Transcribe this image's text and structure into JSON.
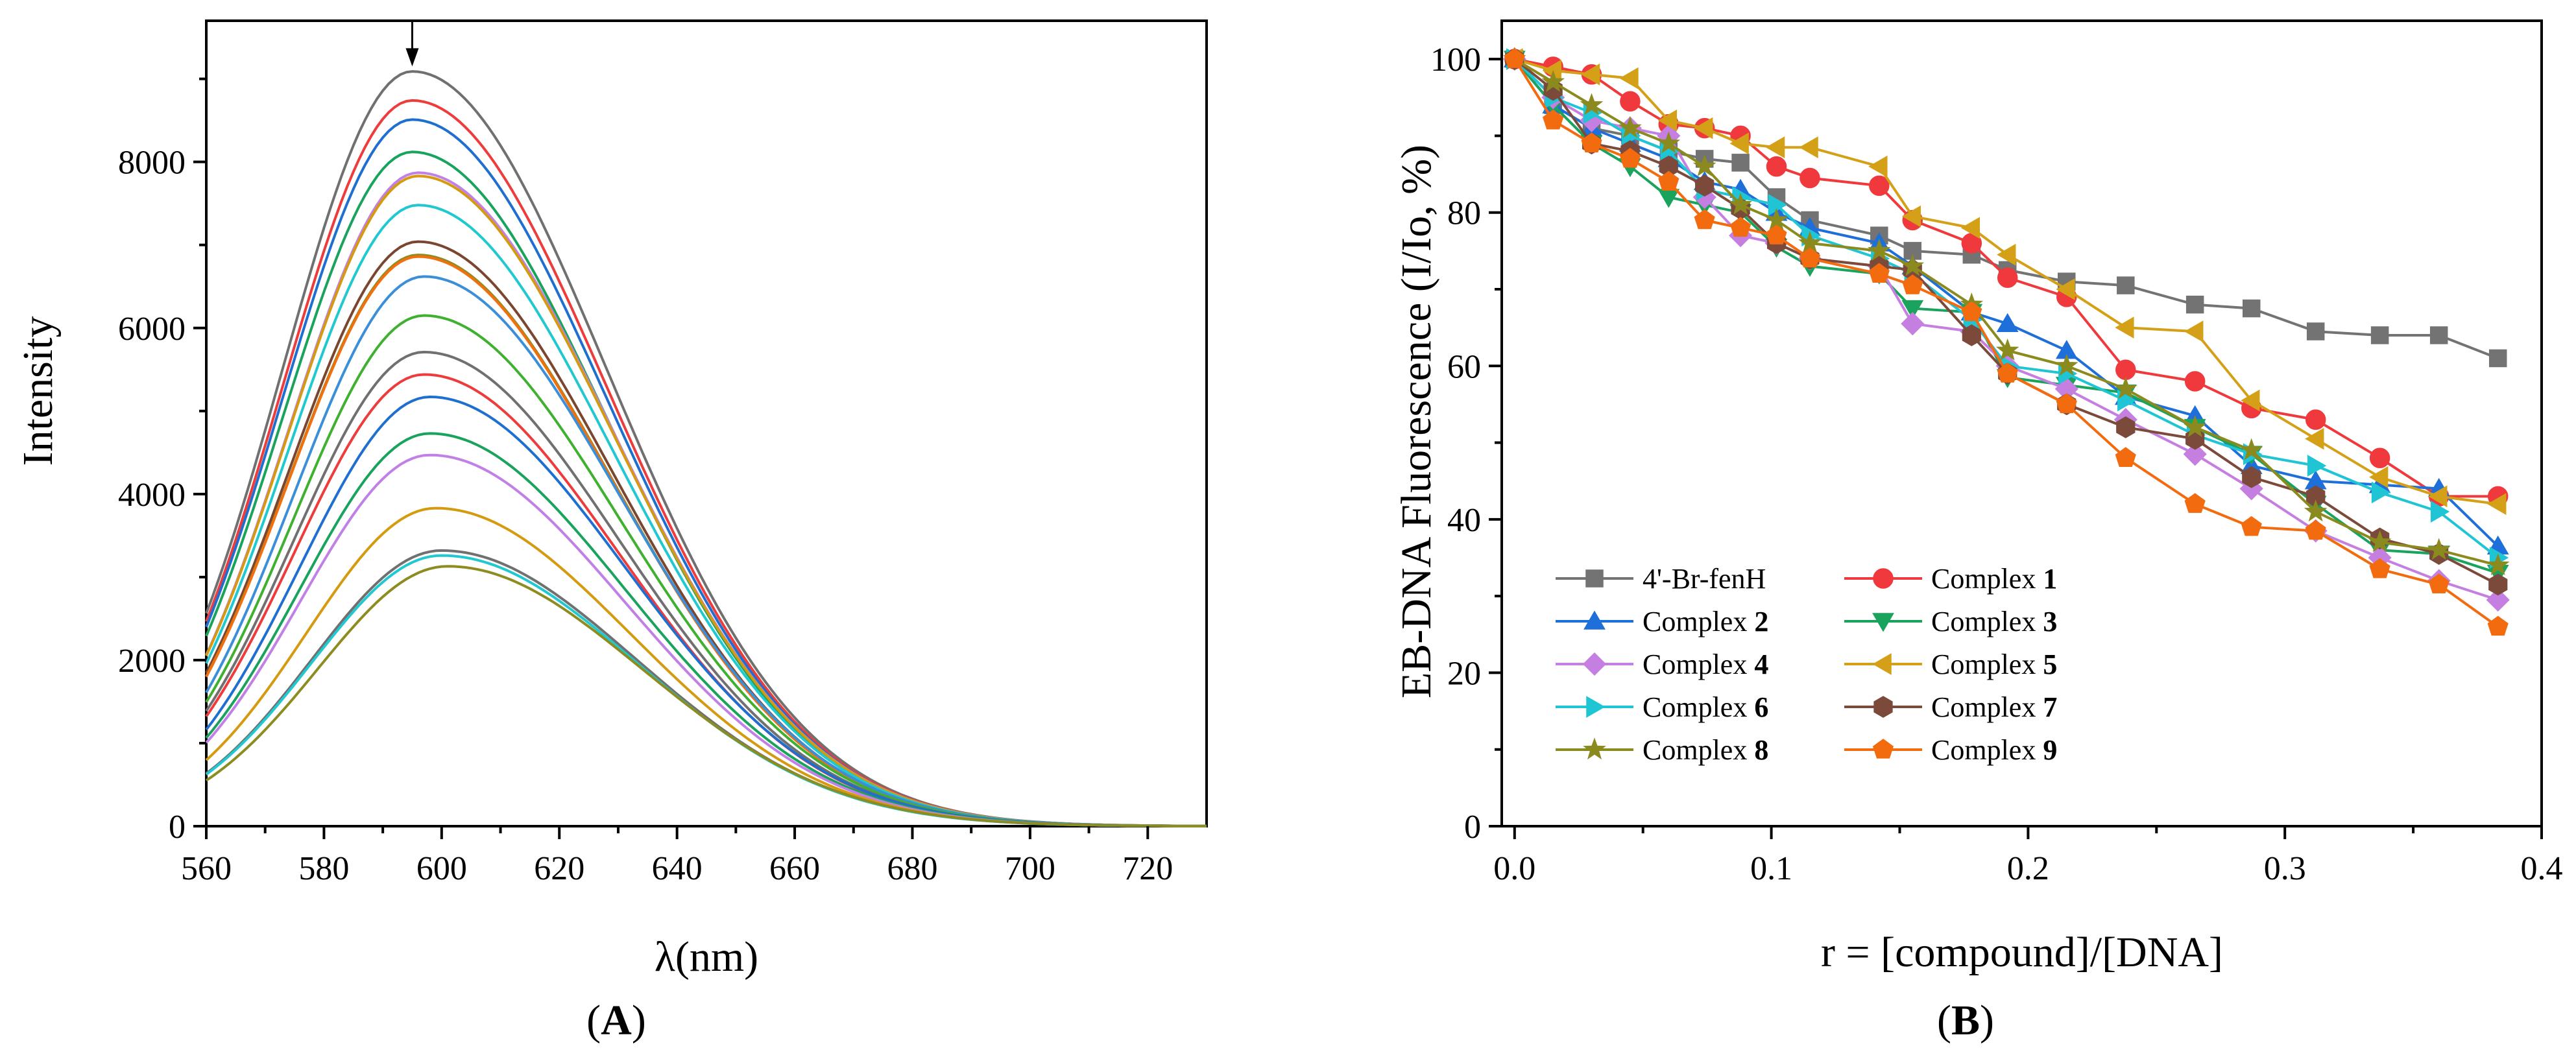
{
  "chart_data": [
    {
      "type": "line",
      "panel_label": "A",
      "panel_label_open": "(",
      "panel_label_close": ")",
      "xlabel": "λ(nm)",
      "ylabel": "Intensity",
      "xlim": [
        560,
        730
      ],
      "ylim": [
        0,
        9700
      ],
      "xticks": [
        "560",
        "580",
        "600",
        "620",
        "640",
        "660",
        "680",
        "700",
        "720"
      ],
      "yticks": [
        "0",
        "2000",
        "4000",
        "6000",
        "8000"
      ],
      "arrow": {
        "x": 595,
        "from": 9700,
        "to": 9150,
        "direction": "down"
      },
      "series": [
        {
          "peak": 9090,
          "peak_x": 595,
          "color": "#707070"
        },
        {
          "peak": 8740,
          "peak_x": 595,
          "color": "#ee3b3b"
        },
        {
          "peak": 8510,
          "peak_x": 595,
          "color": "#1f6fd1"
        },
        {
          "peak": 8120,
          "peak_x": 595,
          "color": "#1aa35c"
        },
        {
          "peak": 7870,
          "peak_x": 596,
          "color": "#c080e6"
        },
        {
          "peak": 7830,
          "peak_x": 596,
          "color": "#d49a10"
        },
        {
          "peak": 7480,
          "peak_x": 596,
          "color": "#20c8d0"
        },
        {
          "peak": 7040,
          "peak_x": 596,
          "color": "#7a4630"
        },
        {
          "peak": 6880,
          "peak_x": 596,
          "color": "#8c8c20"
        },
        {
          "peak": 6860,
          "peak_x": 596,
          "color": "#f07010"
        },
        {
          "peak": 6620,
          "peak_x": 597,
          "color": "#3a8fd8"
        },
        {
          "peak": 6150,
          "peak_x": 597,
          "color": "#40b030"
        },
        {
          "peak": 5710,
          "peak_x": 597,
          "color": "#707070"
        },
        {
          "peak": 5440,
          "peak_x": 597,
          "color": "#ee3b3b"
        },
        {
          "peak": 5170,
          "peak_x": 598,
          "color": "#1f6fd1"
        },
        {
          "peak": 4730,
          "peak_x": 598,
          "color": "#1aa35c"
        },
        {
          "peak": 4470,
          "peak_x": 598,
          "color": "#c080e6"
        },
        {
          "peak": 3830,
          "peak_x": 599,
          "color": "#d49a10"
        },
        {
          "peak": 3320,
          "peak_x": 600,
          "color": "#707070"
        },
        {
          "peak": 3260,
          "peak_x": 600,
          "color": "#20c8d0"
        },
        {
          "peak": 3130,
          "peak_x": 601,
          "color": "#8c8c20"
        }
      ]
    },
    {
      "type": "line",
      "panel_label": "B",
      "panel_label_open": "(",
      "panel_label_close": ")",
      "xlabel": "r = [compound]/[DNA]",
      "ylabel": "EB-DNA Fluorescence (I/Io, %)",
      "xlim": [
        -0.005,
        0.4
      ],
      "ylim": [
        0,
        105
      ],
      "xticks": [
        "0.0",
        "0.1",
        "0.2",
        "0.3",
        "0.4"
      ],
      "yticks": [
        "0",
        "20",
        "40",
        "60",
        "80",
        "100"
      ],
      "x": [
        0.0,
        0.015,
        0.03,
        0.045,
        0.06,
        0.074,
        0.088,
        0.102,
        0.115,
        0.142,
        0.155,
        0.178,
        0.192,
        0.215,
        0.238,
        0.265,
        0.287,
        0.312,
        0.337,
        0.36,
        0.383
      ],
      "legend": {
        "position": "bottom-left",
        "columns": 2
      },
      "series": [
        {
          "name": "4'-Br-fenH",
          "prefix": "",
          "number": "",
          "marker": "square",
          "color": "#737373",
          "values": [
            100,
            94,
            91,
            90,
            88,
            87,
            86.5,
            82,
            79,
            77,
            75,
            74.5,
            72.5,
            71,
            70.5,
            68,
            67.5,
            64.5,
            64,
            64,
            61
          ]
        },
        {
          "name": "Complex 1",
          "prefix": "Complex ",
          "number": "1",
          "marker": "circle",
          "color": "#f0393c",
          "values": [
            100,
            99,
            98,
            94.5,
            91.5,
            91,
            90,
            86,
            84.5,
            83.5,
            79,
            76,
            71.5,
            69,
            59.5,
            58,
            54.5,
            53,
            48,
            43,
            43
          ]
        },
        {
          "name": "Complex 2",
          "prefix": "Complex ",
          "number": "2",
          "marker": "triangle-up",
          "color": "#1e6fd9",
          "values": [
            100,
            94,
            91,
            89,
            87,
            84,
            83,
            80,
            78,
            76,
            73,
            67,
            65.5,
            62,
            56,
            53.5,
            47,
            45,
            44.5,
            44,
            36.5
          ]
        },
        {
          "name": "Complex 3",
          "prefix": "Complex ",
          "number": "3",
          "marker": "triangle-down",
          "color": "#1aa35c",
          "values": [
            100,
            94,
            89,
            86,
            82,
            81,
            80,
            75.5,
            73,
            72,
            67.5,
            67,
            58.5,
            57.5,
            56.5,
            52,
            48.5,
            42,
            36,
            35.5,
            33
          ]
        },
        {
          "name": "Complex 4",
          "prefix": "Complex ",
          "number": "4",
          "marker": "diamond",
          "color": "#c57fe0",
          "values": [
            100,
            95,
            92,
            91,
            90,
            82,
            77,
            76,
            74,
            73,
            65.5,
            64.5,
            60,
            57,
            53,
            48.5,
            44,
            38.5,
            35,
            32,
            29.5
          ]
        },
        {
          "name": "Complex 5",
          "prefix": "Complex ",
          "number": "5",
          "marker": "triangle-left",
          "color": "#d4a017",
          "values": [
            100,
            98.5,
            98,
            97.5,
            92,
            91,
            89,
            88.5,
            88.5,
            86,
            79.5,
            78,
            74.5,
            70,
            65,
            64.5,
            55.5,
            50.5,
            45.5,
            43,
            42
          ]
        },
        {
          "name": "Complex 6",
          "prefix": "Complex ",
          "number": "6",
          "marker": "triangle-right",
          "color": "#1fc5d4",
          "values": [
            100,
            95,
            93,
            90,
            88,
            83,
            82,
            81,
            77,
            74,
            72,
            66,
            60,
            59,
            55.5,
            51,
            48.5,
            47,
            43.5,
            41,
            35
          ]
        },
        {
          "name": "Complex 7",
          "prefix": "Complex ",
          "number": "7",
          "marker": "hexagon",
          "color": "#7b4a3b",
          "values": [
            100,
            96,
            89,
            88,
            86,
            83.5,
            80.5,
            76,
            74,
            73,
            72.5,
            64,
            59,
            55,
            52,
            50.5,
            45.5,
            43,
            37.5,
            35.5,
            31.5
          ]
        },
        {
          "name": "Complex 8",
          "prefix": "Complex ",
          "number": "8",
          "marker": "star",
          "color": "#8a8a1e",
          "values": [
            100,
            97,
            94,
            91,
            89,
            86,
            81,
            79,
            76,
            75,
            73,
            68,
            62,
            60,
            57,
            52,
            49,
            41,
            37,
            36,
            34
          ]
        },
        {
          "name": "Complex 9",
          "prefix": "Complex ",
          "number": "9",
          "marker": "pentagon",
          "color": "#f36b0f",
          "values": [
            100,
            92,
            89,
            87,
            84,
            79,
            78,
            77,
            74,
            72,
            70.5,
            67,
            59,
            55,
            48,
            42,
            39,
            38.5,
            33.5,
            31.5,
            26
          ]
        }
      ]
    }
  ]
}
